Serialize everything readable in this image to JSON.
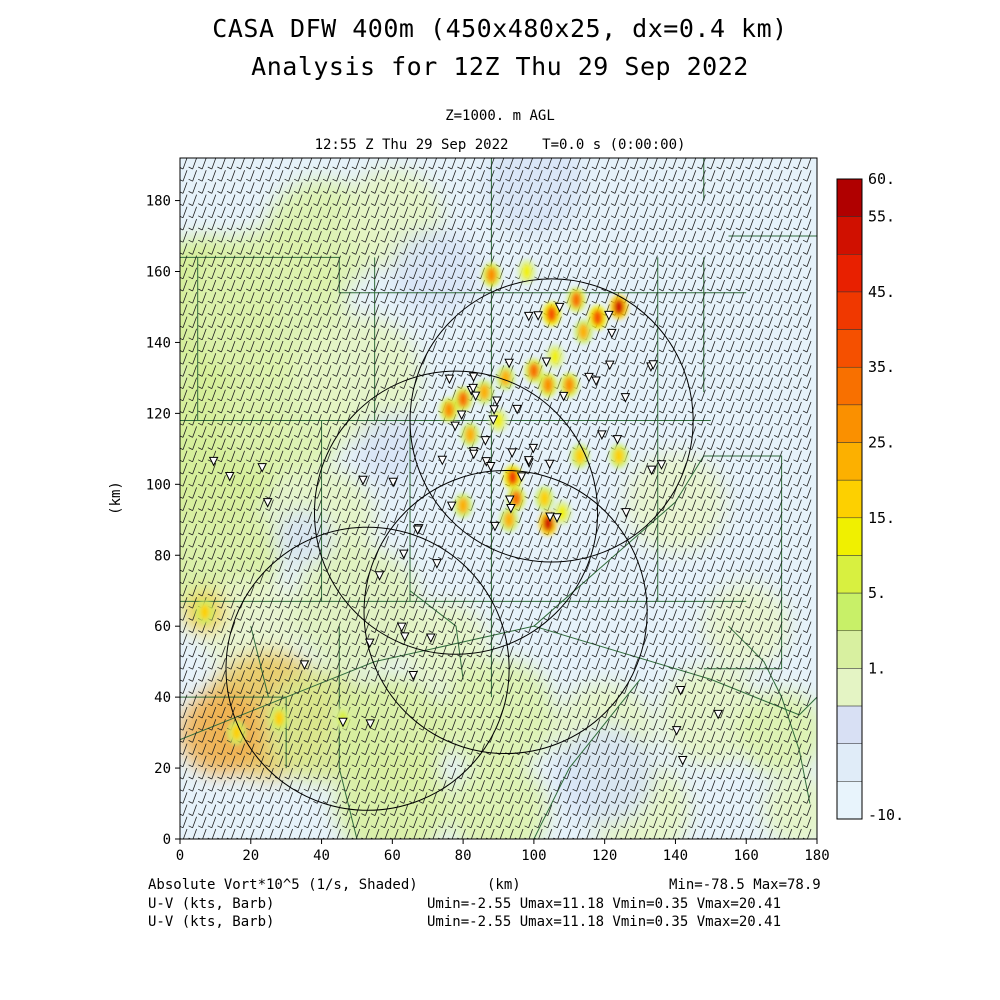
{
  "header": {
    "title_line1": "CASA DFW 400m (450x480x25, dx=0.4 km)",
    "title_line2": "Analysis for 12Z Thu 29 Sep 2022",
    "level": "Z=1000. m AGL",
    "valid_time": "12:55 Z Thu 29 Sep 2022    T=0.0 s (0:00:00)"
  },
  "footer": {
    "field_label": "Absolute Vort*10^5 (1/s, Shaded)",
    "barb_label_1": "U-V (kts, Barb)",
    "barb_label_2": "U-V (kts, Barb)",
    "x_unit": "(km)",
    "minmax": "Min=-78.5 Max=78.9",
    "uv_stats_1": "Umin=-2.55 Umax=11.18 Vmin=0.35 Vmax=20.41",
    "uv_stats_2": "Umin=-2.55 Umax=11.18 Vmin=0.35 Vmax=20.41"
  },
  "chart_data": {
    "type": "heatmap",
    "xlabel": "(km)",
    "ylabel": "(km)",
    "xlim": [
      0,
      180
    ],
    "ylim": [
      0,
      192
    ],
    "x_ticks": [
      0,
      20,
      40,
      60,
      80,
      100,
      120,
      140,
      160,
      180
    ],
    "y_ticks": [
      0,
      20,
      40,
      60,
      80,
      100,
      120,
      140,
      160,
      180
    ],
    "colorbar": {
      "labels": [
        "60.",
        "55.",
        "45.",
        "35.",
        "25.",
        "15.",
        "5.",
        "1.",
        "-10."
      ],
      "colors": [
        "#b00000",
        "#d01000",
        "#e82000",
        "#f03800",
        "#f55000",
        "#f87000",
        "#fa9000",
        "#fcb000",
        "#fdd000",
        "#f0f000",
        "#d8f040",
        "#c8f068",
        "#d8f0a0",
        "#e4f4c4",
        "#d8e0f4",
        "#e0ecf8",
        "#e8f4fc"
      ]
    },
    "series": [
      {
        "name": "Absolute Vort*10^5 (1/s, Shaded)",
        "hotspots": [
          {
            "x": 88,
            "y": 159,
            "v": 35
          },
          {
            "x": 98,
            "y": 160,
            "v": 20
          },
          {
            "x": 105,
            "y": 148,
            "v": 45
          },
          {
            "x": 112,
            "y": 152,
            "v": 40
          },
          {
            "x": 118,
            "y": 147,
            "v": 45
          },
          {
            "x": 124,
            "y": 150,
            "v": 58
          },
          {
            "x": 114,
            "y": 143,
            "v": 30
          },
          {
            "x": 106,
            "y": 136,
            "v": 20
          },
          {
            "x": 100,
            "y": 132,
            "v": 40
          },
          {
            "x": 104,
            "y": 128,
            "v": 35
          },
          {
            "x": 110,
            "y": 128,
            "v": 35
          },
          {
            "x": 92,
            "y": 130,
            "v": 30
          },
          {
            "x": 86,
            "y": 126,
            "v": 30
          },
          {
            "x": 80,
            "y": 124,
            "v": 40
          },
          {
            "x": 76,
            "y": 121,
            "v": 35
          },
          {
            "x": 82,
            "y": 114,
            "v": 30
          },
          {
            "x": 90,
            "y": 118,
            "v": 20
          },
          {
            "x": 113,
            "y": 108,
            "v": 25
          },
          {
            "x": 124,
            "y": 108,
            "v": 25
          },
          {
            "x": 94,
            "y": 102,
            "v": 50
          },
          {
            "x": 95,
            "y": 96,
            "v": 40
          },
          {
            "x": 93,
            "y": 90,
            "v": 30
          },
          {
            "x": 80,
            "y": 94,
            "v": 30
          },
          {
            "x": 103,
            "y": 96,
            "v": 25
          },
          {
            "x": 104,
            "y": 89,
            "v": 58
          },
          {
            "x": 108,
            "y": 92,
            "v": 20
          },
          {
            "x": 7,
            "y": 64,
            "v": 25
          },
          {
            "x": 16,
            "y": 30,
            "v": 25
          },
          {
            "x": 28,
            "y": 34,
            "v": 25
          },
          {
            "x": 46,
            "y": 34,
            "v": 18
          }
        ]
      },
      {
        "name": "U-V (kts, Barb)",
        "umin": -2.55,
        "umax": 11.18,
        "vmin": 0.35,
        "vmax": 20.41
      }
    ],
    "radar_circles": [
      {
        "x": 105,
        "y": 118,
        "r": 40
      },
      {
        "x": 78,
        "y": 92,
        "r": 40
      },
      {
        "x": 92,
        "y": 64,
        "r": 40
      },
      {
        "x": 53,
        "y": 48,
        "r": 40
      }
    ],
    "min": -78.5,
    "max": 78.9
  }
}
